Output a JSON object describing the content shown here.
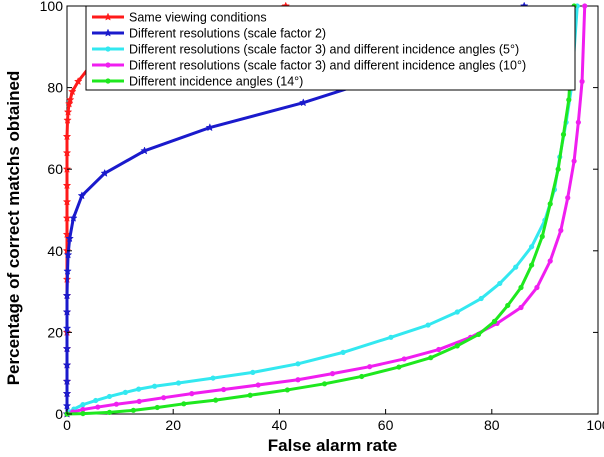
{
  "chart_data": {
    "type": "line",
    "title": "",
    "xlabel": "False alarm rate",
    "ylabel": "Percentage of correct matchs obtained",
    "xlim": [
      0,
      100
    ],
    "ylim": [
      0,
      100
    ],
    "xticks": [
      0,
      20,
      40,
      60,
      80,
      100
    ],
    "yticks": [
      0,
      20,
      40,
      60,
      80,
      100
    ],
    "grid": false,
    "legend_position": "top-left",
    "series": [
      {
        "name": "Same viewing conditions",
        "color": "#ff1a1a",
        "marker": "star",
        "x": [
          0,
          0,
          0,
          0,
          0,
          0,
          0,
          0,
          0,
          0,
          0,
          0,
          0,
          0,
          0,
          0,
          0,
          0.1,
          0.2,
          0.4,
          0.6,
          1.0,
          2.1,
          4.8,
          10.2,
          22.4,
          41.2
        ],
        "y": [
          0,
          5,
          8,
          12,
          16,
          20,
          25,
          29,
          33,
          40,
          44,
          48,
          52,
          56,
          60,
          64,
          68,
          72,
          74,
          76,
          77,
          79,
          81.5,
          86,
          90.5,
          95.3,
          100
        ]
      },
      {
        "name": "Different resolutions (scale factor 2)",
        "color": "#1a1acc",
        "marker": "star",
        "x": [
          0,
          0,
          0,
          0,
          0,
          0,
          0,
          0,
          0,
          0.1,
          0.2,
          0.5,
          1.2,
          2.8,
          7.1,
          14.6,
          26.9,
          44.5,
          61.8,
          75.8,
          86.1
        ],
        "y": [
          0,
          2,
          5,
          8,
          12,
          16,
          21,
          25,
          29,
          35,
          39,
          43,
          48,
          53.5,
          59,
          64.5,
          70.2,
          76.3,
          83.5,
          91.2,
          100
        ]
      },
      {
        "name": "Different resolutions (scale factor 3) and different incidence angles (5°)",
        "color": "#33e8f0",
        "marker": "dot",
        "x": [
          0,
          0.5,
          1.3,
          3.0,
          5.4,
          8.0,
          11.0,
          13.5,
          16.5,
          21.0,
          27.5,
          35.0,
          43.5,
          52.0,
          61.0,
          68.0,
          73.5,
          78.0,
          81.5,
          84.5,
          87.5,
          90.0,
          91.8,
          92.8,
          94.0,
          95.0,
          96.1
        ],
        "y": [
          0,
          0.5,
          1.2,
          2.3,
          3.3,
          4.3,
          5.3,
          6.1,
          6.8,
          7.6,
          8.8,
          10.2,
          12.3,
          15.1,
          18.8,
          21.8,
          25.0,
          28.3,
          32.0,
          36.0,
          41.0,
          47.5,
          55.0,
          63.0,
          71.5,
          80.0,
          100
        ]
      },
      {
        "name": "Different resolutions (scale factor 3) and different incidence angles (10°)",
        "color": "#f01ef0",
        "marker": "dot",
        "x": [
          0,
          1.1,
          3.0,
          5.8,
          9.3,
          13.6,
          18.2,
          23.5,
          29.5,
          36.0,
          43.5,
          50.0,
          57.0,
          63.5,
          70.0,
          76.0,
          81.0,
          85.5,
          88.5,
          91.0,
          93.0,
          94.3,
          95.5,
          96.3,
          97.0,
          97.5
        ],
        "y": [
          0,
          0.5,
          1.1,
          1.7,
          2.4,
          3.1,
          4.0,
          5.0,
          6.0,
          7.1,
          8.4,
          9.9,
          11.6,
          13.5,
          15.8,
          18.8,
          22.2,
          26.1,
          31.0,
          37.5,
          45.0,
          53.0,
          62.0,
          71.5,
          81.5,
          100
        ]
      },
      {
        "name": "Different incidence angles (14°)",
        "color": "#1ee81e",
        "marker": "dot",
        "x": [
          0,
          3.0,
          8.0,
          12.5,
          17.0,
          22.0,
          28.0,
          34.5,
          41.5,
          48.5,
          55.5,
          62.5,
          68.5,
          73.5,
          77.5,
          80.5,
          83.0,
          85.5,
          87.5,
          89.5,
          91.0,
          92.5,
          93.5,
          94.5,
          95.5
        ],
        "y": [
          0,
          0.1,
          0.4,
          0.9,
          1.6,
          2.5,
          3.4,
          4.6,
          5.9,
          7.4,
          9.2,
          11.5,
          13.8,
          16.7,
          19.5,
          22.7,
          26.6,
          31.0,
          36.5,
          43.5,
          51.5,
          60.0,
          68.5,
          77.0,
          100
        ]
      }
    ]
  }
}
